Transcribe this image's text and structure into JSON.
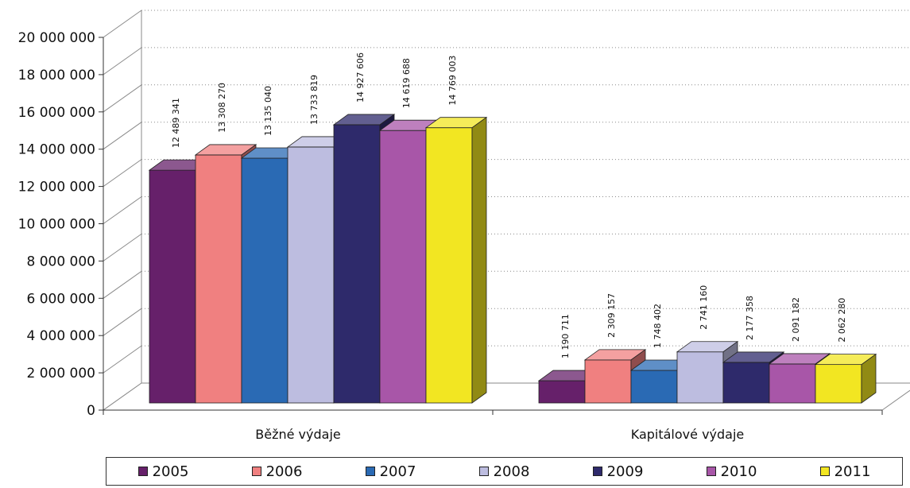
{
  "chart_data": {
    "type": "bar",
    "title": "",
    "xlabel": "",
    "ylabel": "",
    "categories": [
      "Běžné výdaje",
      "Kapitálové výdaje"
    ],
    "ylim": [
      0,
      20000000
    ],
    "y_ticks": [
      0,
      2000000,
      4000000,
      6000000,
      8000000,
      10000000,
      12000000,
      14000000,
      16000000,
      18000000,
      20000000
    ],
    "y_tick_labels": [
      "0",
      "2 000 000",
      "4 000 000",
      "6 000 000",
      "8 000 000",
      "10 000 000",
      "12 000 000",
      "14 000 000",
      "16 000 000",
      "18 000 000",
      "20 000 000"
    ],
    "grid": true,
    "legend_position": "bottom",
    "style": "3d-clustered-column",
    "series": [
      {
        "name": "2005",
        "color": "#66206a",
        "values": [
          12489341,
          1190711
        ],
        "labels": [
          "12 489 341",
          "1 190 711"
        ]
      },
      {
        "name": "2006",
        "color": "#f08080",
        "values": [
          13308270,
          2309157
        ],
        "labels": [
          "13 308 270",
          "2 309 157"
        ]
      },
      {
        "name": "2007",
        "color": "#2a6ab4",
        "values": [
          13135040,
          1748402
        ],
        "labels": [
          "13 135 040",
          "1 748 402"
        ]
      },
      {
        "name": "2008",
        "color": "#bdbde0",
        "values": [
          13733819,
          2741160
        ],
        "labels": [
          "13 733 819",
          "2 741 160"
        ]
      },
      {
        "name": "2009",
        "color": "#2e2a6b",
        "values": [
          14927606,
          2177358
        ],
        "labels": [
          "14 927 606",
          "2 177 358"
        ]
      },
      {
        "name": "2010",
        "color": "#a856a8",
        "values": [
          14619688,
          2091182
        ],
        "labels": [
          "14 619 688",
          "2 091 182"
        ]
      },
      {
        "name": "2011",
        "color": "#f2e622",
        "values": [
          14769003,
          2062280
        ],
        "labels": [
          "14 769 003",
          "2 062 280"
        ]
      }
    ]
  }
}
